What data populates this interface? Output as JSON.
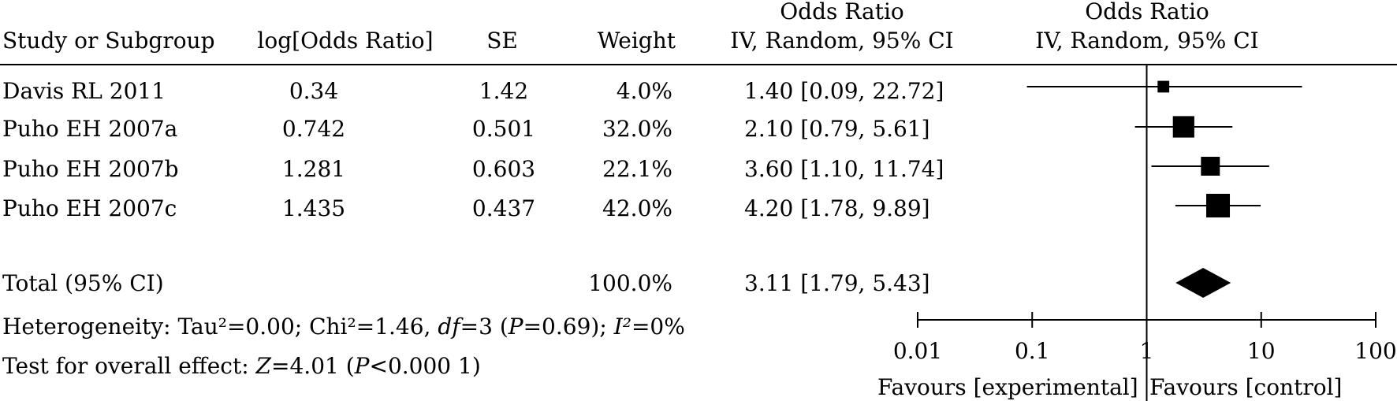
{
  "header": {
    "study": "Study or Subgroup",
    "logor": "log[Odds Ratio]",
    "se": "SE",
    "weight": "Weight",
    "or_title": "Odds Ratio",
    "or_method": "IV, Random, 95% CI",
    "plot_title": "Odds Ratio",
    "plot_method": "IV, Random, 95% CI"
  },
  "rows": [
    {
      "study": "Davis RL 2011",
      "logor": "0.34",
      "se": "1.42",
      "weight": "4.0%",
      "ci": "1.40 [0.09, 22.72]"
    },
    {
      "study": "Puho EH 2007a",
      "logor": "0.742",
      "se": "0.501",
      "weight": "32.0%",
      "ci": "2.10 [0.79, 5.61]"
    },
    {
      "study": "Puho EH 2007b",
      "logor": "1.281",
      "se": "0.603",
      "weight": "22.1%",
      "ci": "3.60 [1.10, 11.74]"
    },
    {
      "study": "Puho EH 2007c",
      "logor": "1.435",
      "se": "0.437",
      "weight": "42.0%",
      "ci": "4.20 [1.78, 9.89]"
    }
  ],
  "total": {
    "label": "Total (95% CI)",
    "weight": "100.0%",
    "ci": "3.11 [1.79, 5.43]"
  },
  "heterogeneity": {
    "prefix": "Heterogeneity: Tau²=0.00; Chi²=1.46, ",
    "df_sym": "df",
    "df_val": "=3 (",
    "p_sym": "P",
    "p_val": "=0.69); ",
    "i2_sym": "I²",
    "i2_val": "=0%"
  },
  "overall": {
    "prefix": "Test for overall effect: ",
    "z_sym": "Z",
    "z_val": "=4.01 (",
    "p_sym": "P",
    "p_val": "<0.000 1)"
  },
  "axis": {
    "favours_left": "Favours [experimental]",
    "favours_right": "Favours [control]"
  },
  "chart_data": {
    "type": "scatter",
    "subtype": "forest plot",
    "title": "Odds Ratio",
    "subtitle": "IV, Random, 95% CI",
    "xscale": "log",
    "xlim": [
      0.01,
      100
    ],
    "ticks": [
      0.01,
      0.1,
      1,
      10,
      100
    ],
    "tick_labels": [
      "0.01",
      "0.1",
      "1",
      "10",
      "100"
    ],
    "reference_line": 1,
    "studies": [
      {
        "name": "Davis RL 2011",
        "or": 1.4,
        "lower": 0.09,
        "upper": 22.72,
        "weight": 4.0
      },
      {
        "name": "Puho EH 2007a",
        "or": 2.1,
        "lower": 0.79,
        "upper": 5.61,
        "weight": 32.0
      },
      {
        "name": "Puho EH 2007b",
        "or": 3.6,
        "lower": 1.1,
        "upper": 11.74,
        "weight": 22.1
      },
      {
        "name": "Puho EH 2007c",
        "or": 4.2,
        "lower": 1.78,
        "upper": 9.89,
        "weight": 42.0
      }
    ],
    "pooled": {
      "name": "Total (95% CI)",
      "or": 3.11,
      "lower": 1.79,
      "upper": 5.43
    }
  }
}
